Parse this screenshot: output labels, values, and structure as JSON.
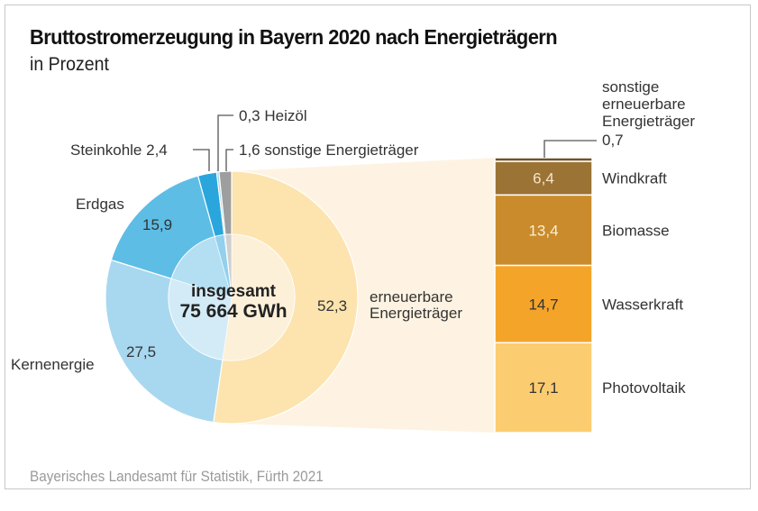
{
  "title": "Bruttostromerzeugung in Bayern 2020 nach Energieträgern",
  "subtitle": "in Prozent",
  "source": "Bayerisches Landesamt für Statistik, Fürth 2021",
  "chart_data": [
    {
      "type": "pie",
      "title": "Bruttostromerzeugung in Bayern 2020 nach Energieträgern",
      "unit": "Prozent",
      "center_label": [
        "insgesamt",
        "75 664 GWh"
      ],
      "slices": [
        {
          "name": "erneuerbare Energieträger",
          "label_lines": [
            "erneuerbare",
            "Energieträger"
          ],
          "value": 52.3,
          "value_label": "52,3",
          "color": "#fde3ae",
          "inner_color": "#fdf0d9"
        },
        {
          "name": "Kernenergie",
          "label_lines": [
            "Kernenergie"
          ],
          "value": 27.5,
          "value_label": "27,5",
          "color": "#a8d8ef",
          "inner_color": "#d3ebf6"
        },
        {
          "name": "Erdgas",
          "label_lines": [
            "Erdgas"
          ],
          "value": 15.9,
          "value_label": "15,9",
          "color": "#5dbde5",
          "inner_color": "#b4dff2"
        },
        {
          "name": "Steinkohle",
          "label_lines": [
            "Steinkohle 2,4"
          ],
          "value": 2.4,
          "value_label": "2,4",
          "color": "#2aa6dc",
          "inner_color": "#92d0ee"
        },
        {
          "name": "Heizöl",
          "label_lines": [
            "0,3 Heizöl"
          ],
          "value": 0.3,
          "value_label": "0,3",
          "color": "#9fd3ec",
          "inner_color": "#cce8f4"
        },
        {
          "name": "sonstige Energieträger",
          "label_lines": [
            "1,6 sonstige Energieträger"
          ],
          "value": 1.6,
          "value_label": "1,6",
          "color": "#9e9e9e",
          "inner_color": "#cfcfcf"
        }
      ]
    },
    {
      "type": "bar",
      "stacked": true,
      "title": "erneuerbare Energieträger",
      "categories": [
        "sonstige erneuerbare Energieträger",
        "Windkraft",
        "Biomasse",
        "Wasserkraft",
        "Photovoltaik"
      ],
      "segments": [
        {
          "name": "sonstige erneuerbare Energieträger",
          "label_lines": [
            "sonstige",
            "erneuerbare",
            "Energieträger",
            "0,7"
          ],
          "value": 0.7,
          "value_label": "0,7",
          "color": "#6e5427",
          "text_color": "#ffffff"
        },
        {
          "name": "Windkraft",
          "label_lines": [
            "Windkraft"
          ],
          "value": 6.4,
          "value_label": "6,4",
          "color": "#9b7334",
          "text_color": "#f5e6c8"
        },
        {
          "name": "Biomasse",
          "label_lines": [
            "Biomasse"
          ],
          "value": 13.4,
          "value_label": "13,4",
          "color": "#c98b2b",
          "text_color": "#fbefd6"
        },
        {
          "name": "Wasserkraft",
          "label_lines": [
            "Wasserkraft"
          ],
          "value": 14.7,
          "value_label": "14,7",
          "color": "#f4a429",
          "text_color": "#333333"
        },
        {
          "name": "Photovoltaik",
          "label_lines": [
            "Photovoltaik"
          ],
          "value": 17.1,
          "value_label": "17,1",
          "color": "#fccc70",
          "text_color": "#333333"
        }
      ],
      "total": 52.3
    }
  ]
}
